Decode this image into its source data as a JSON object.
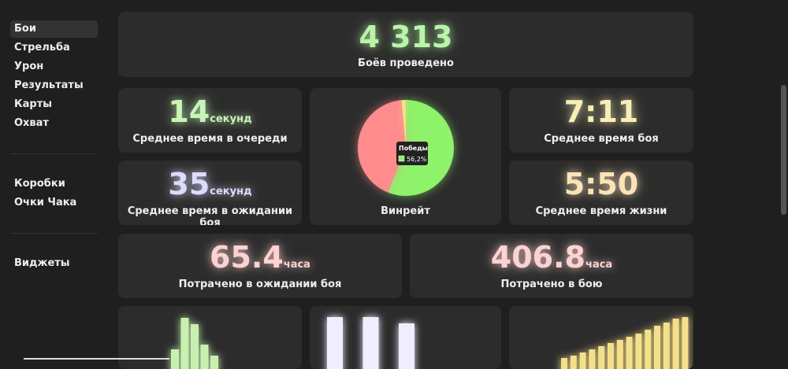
{
  "sidebar": {
    "groups": [
      [
        "Бои",
        "Стрельба",
        "Урон",
        "Результаты",
        "Карты",
        "Охват"
      ],
      [
        "Коробки",
        "Очки Чака"
      ],
      [
        "Виджеты"
      ]
    ]
  },
  "hero": {
    "value": "4 313",
    "label": "Боёв проведено",
    "color": "#b8f5a8"
  },
  "stats": [
    {
      "value": "14",
      "unit": "секунд",
      "label": "Среднее время в очереди",
      "color": "#c8f5b8"
    },
    {
      "value": "7:11",
      "label": "Среднее время боя",
      "color": "#f8efb8"
    },
    {
      "value": "35",
      "unit": "секунд",
      "label": "Среднее время в ожидании боя",
      "color": "#dcdcff"
    },
    {
      "value": "5:50",
      "label": "Среднее время жизни",
      "color": "#fbe3b8"
    },
    {
      "value": "65.4",
      "unit": "часа",
      "label": "Потрачено в ожидании боя",
      "color": "#ffd2d2"
    },
    {
      "value": "406.8",
      "unit": "часа",
      "label": "Потрачено в бою",
      "color": "#ffd2d2"
    }
  ],
  "winrate": {
    "type": "pie",
    "label": "Винрейт",
    "values": [
      56.2,
      42.3,
      1.5
    ],
    "colors": [
      "#8ef26a",
      "#ff8c8c",
      "#f2e08a"
    ],
    "tooltip": {
      "name": "Победы",
      "value_label": "56,2%"
    }
  },
  "mini_bars": [
    {
      "values": [
        13,
        53,
        45,
        19,
        5
      ],
      "color": "#c8f0b0"
    },
    {
      "values": [
        54,
        54,
        46
      ],
      "color": "#eeeeff"
    },
    {
      "values": [
        2,
        5,
        9,
        13,
        17,
        21,
        25,
        29,
        33,
        38,
        43,
        47,
        52,
        54
      ],
      "color": "#f5e08a"
    }
  ]
}
